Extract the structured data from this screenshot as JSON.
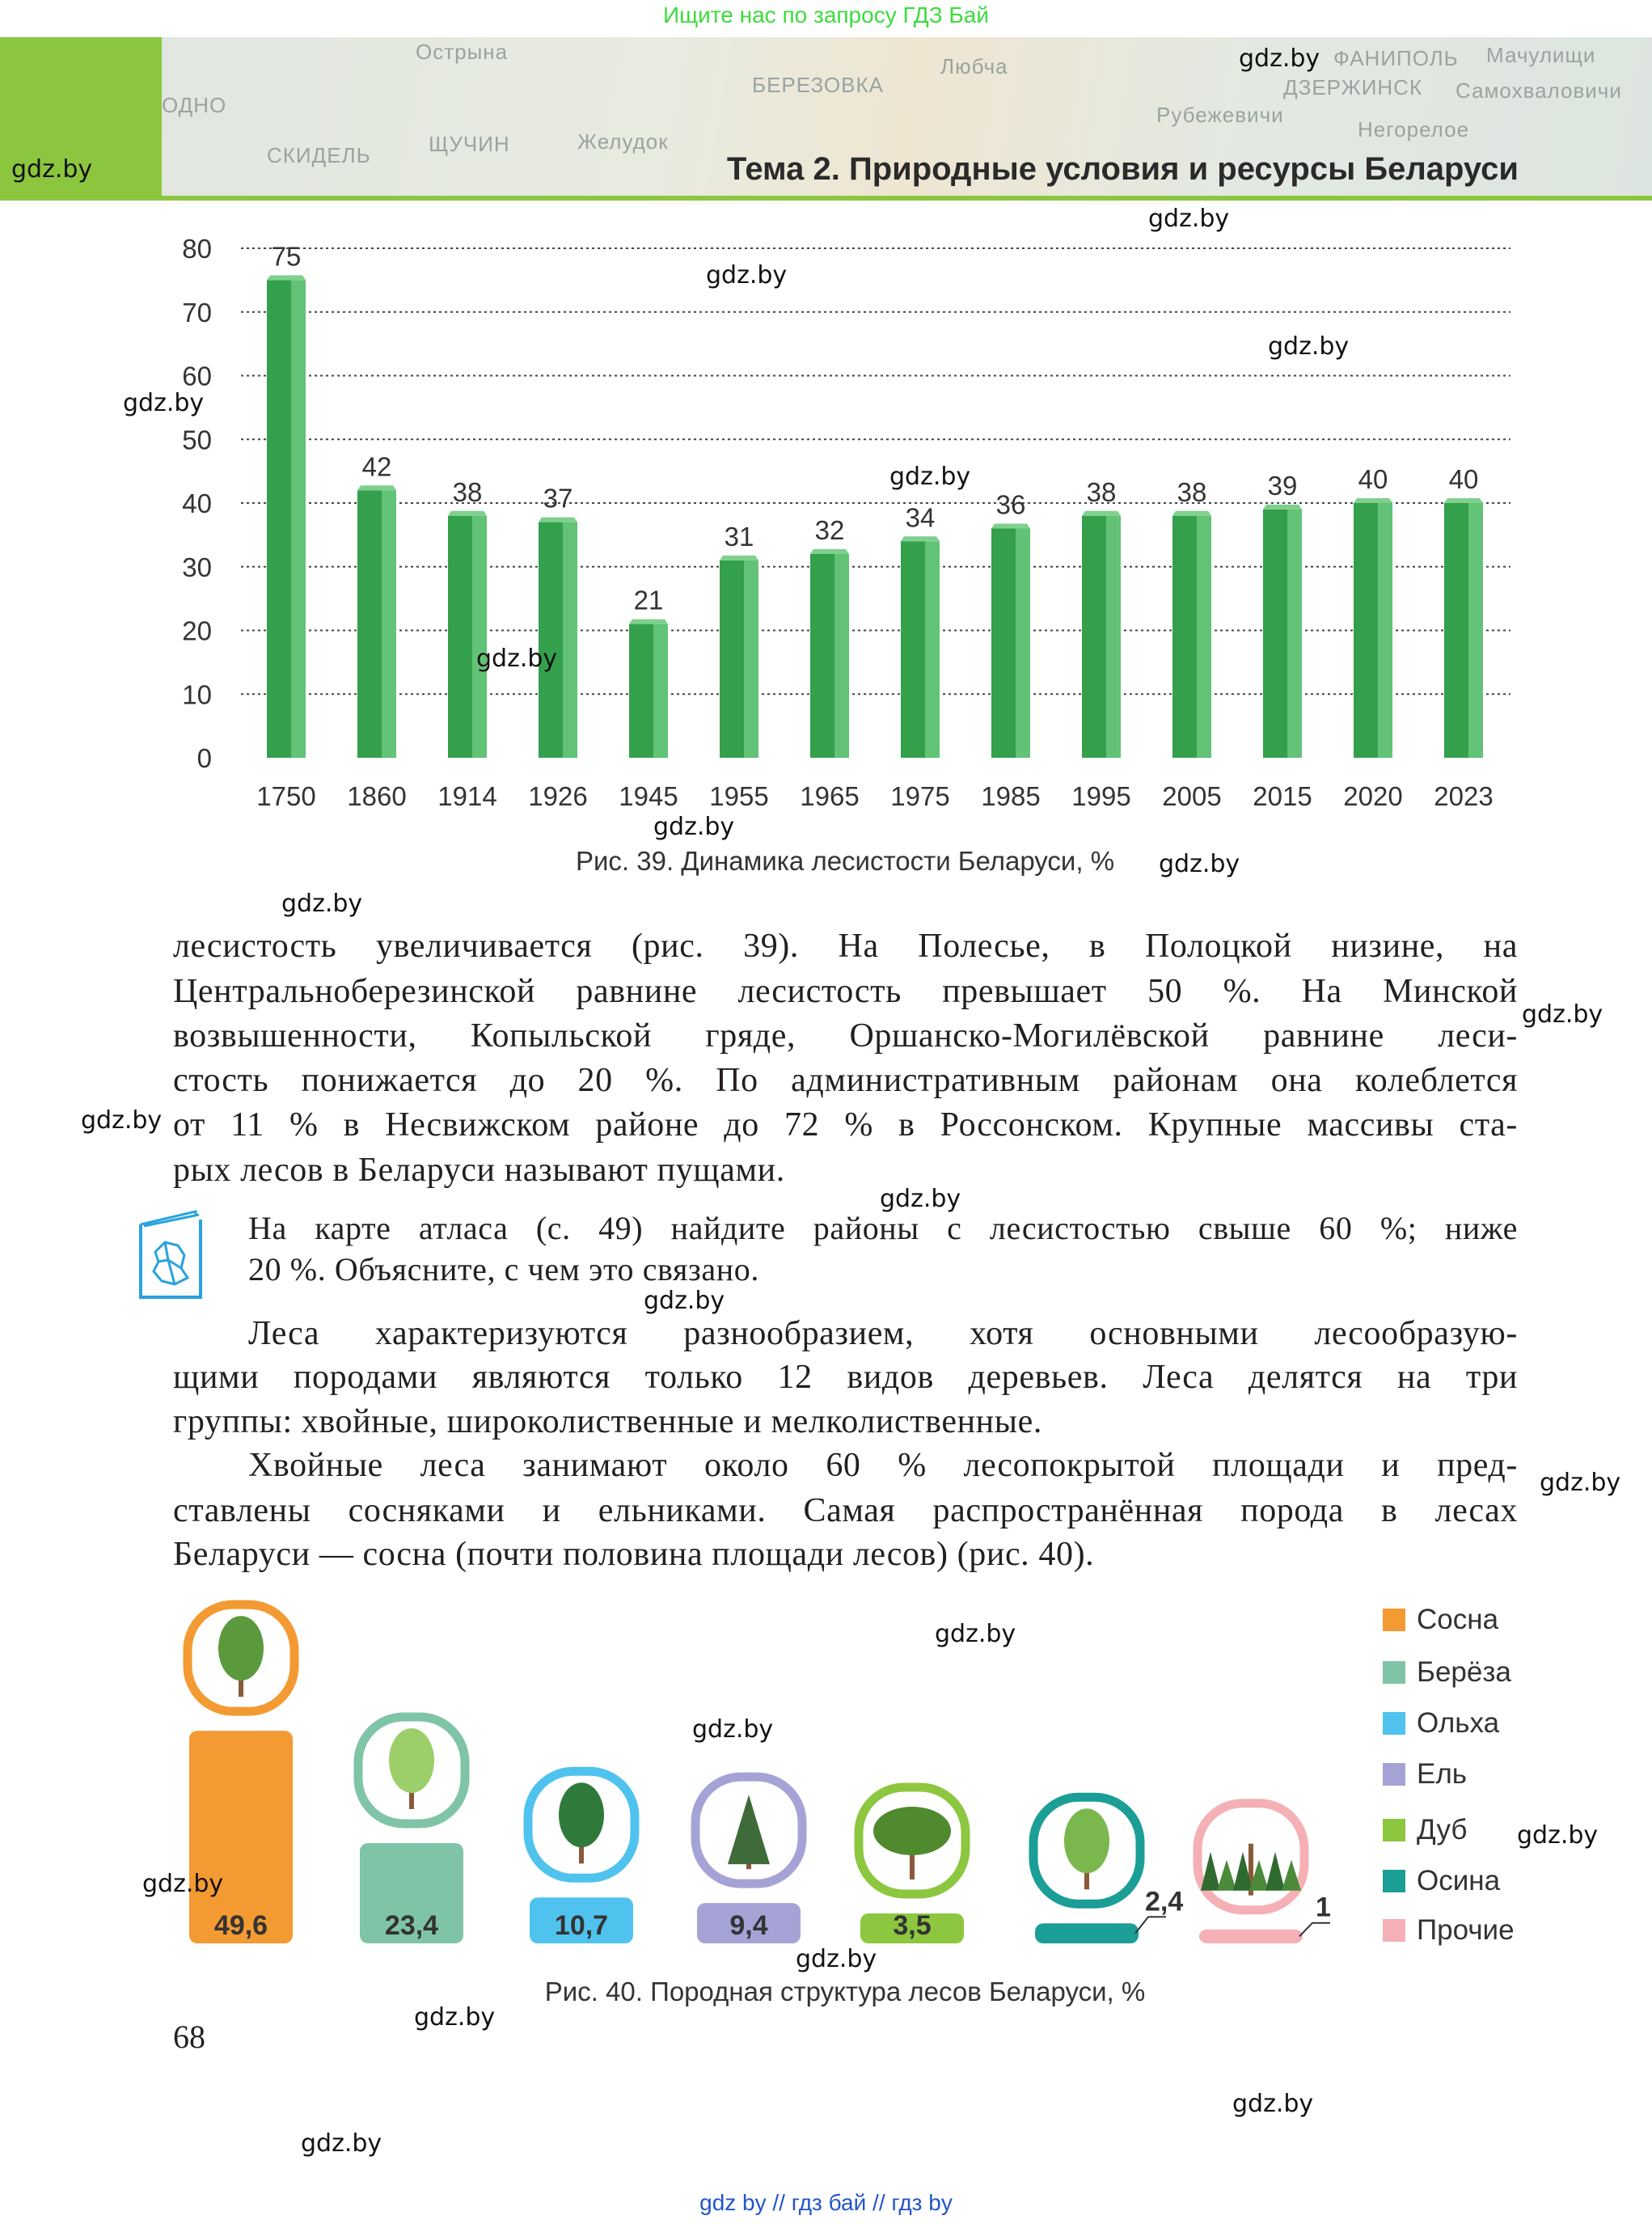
{
  "top_banner": "Ищите нас по запросу ГДЗ Бай",
  "header": {
    "title": "Тема 2. Природные условия и ресурсы Беларуси",
    "map_labels": [
      "Острына",
      "СКИДЕЛЬ",
      "ЩУЧИН",
      "БЕРЕЗОВКА",
      "Любча",
      "ДЗЕРЖИНСК",
      "ФАНИПОЛЬ",
      "Мачулищи",
      "Негорелое",
      "Желудок",
      "ОДНО",
      "Рубежевичи",
      "Самохваловичи"
    ]
  },
  "watermark": "gdz.by",
  "chart_data": [
    {
      "type": "bar",
      "title": "Рис. 39. Динамика лесистости Беларуси, %",
      "categories": [
        "1750",
        "1860",
        "1914",
        "1926",
        "1945",
        "1955",
        "1965",
        "1975",
        "1985",
        "1995",
        "2005",
        "2015",
        "2020",
        "2023"
      ],
      "values": [
        75,
        42,
        38,
        37,
        21,
        31,
        32,
        34,
        36,
        38,
        38,
        39,
        40,
        40
      ],
      "ylim": [
        0,
        80
      ],
      "yticks": [
        0,
        10,
        20,
        30,
        40,
        50,
        60,
        70,
        80
      ],
      "grid": true,
      "bar_color": "#3aa552",
      "xlabel": "",
      "ylabel": ""
    },
    {
      "type": "bar",
      "title": "Рис. 40. Породная структура лесов Беларуси, %",
      "categories": [
        "Сосна",
        "Берёза",
        "Ольха",
        "Ель",
        "Дуб",
        "Осина",
        "Прочие"
      ],
      "values": [
        49.6,
        23.4,
        10.7,
        9.4,
        3.5,
        2.4,
        1
      ],
      "value_labels": [
        "49,6",
        "23,4",
        "10,7",
        "9,4",
        "3,5",
        "2,4",
        "1"
      ],
      "colors": [
        "#f39a32",
        "#7fc4a6",
        "#4fc3ee",
        "#a5a3d6",
        "#8dc63f",
        "#1a9e96",
        "#f5b0b5"
      ],
      "legend": "right"
    }
  ],
  "paragraph1": [
    "лесистость увеличивается (рис. 39). На Полесье, в Полоцкой низине, на",
    "Центральноберезинской равнине лесистость превышает 50 %. На Минской",
    "возвышенности, Копыльской гряде, Оршанско-Могилёвской равнине леси-",
    "стость понижается до 20 %. По административным районам она колеблется",
    "от 11 % в Несвижском районе до 72 % в Россонском. Крупные массивы ста-",
    "рых лесов в Беларуси называют пущами."
  ],
  "task": [
    "На карте атласа (с. 49) найдите районы с лесистостью свыше 60 %; ниже",
    "20 %. Объясните, с чем это связано."
  ],
  "paragraph2": [
    "Леса характеризуются разнообразием, хотя основными лесообразую-",
    "щими породами являются только 12 видов деревьев. Леса делятся на три",
    "группы: хвойные, широколиственные и мелколиственные."
  ],
  "paragraph3": [
    "Хвойные леса занимают около 60 % лесопокрытой площади и пред-",
    "ставлены сосняками и ельниками. Самая распространённая порода в лесах",
    "Беларуси — сосна (почти половина площади лесов) (рис. 40)."
  ],
  "page_number": "68",
  "bottom_links": "gdz by  //  гдз бай  //  гдз by"
}
